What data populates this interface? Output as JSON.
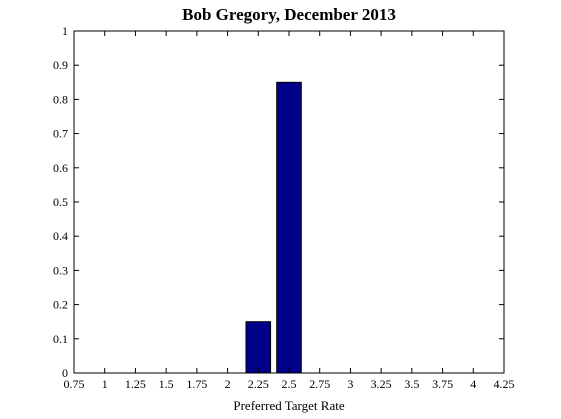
{
  "chart_data": {
    "type": "bar",
    "title": "Bob Gregory, December 2013",
    "xlabel": "Preferred Target Rate",
    "ylabel": "",
    "x": [
      2.25,
      2.5
    ],
    "values": [
      0.15,
      0.85
    ],
    "bar_width": 0.2,
    "xlim": [
      0.75,
      4.25
    ],
    "ylim": [
      0,
      1
    ],
    "xticks": [
      0.75,
      1,
      1.25,
      1.5,
      1.75,
      2,
      2.25,
      2.5,
      2.75,
      3,
      3.25,
      3.5,
      3.75,
      4,
      4.25
    ],
    "xtick_labels": [
      "0.75",
      "1",
      "1.25",
      "1.5",
      "1.75",
      "2",
      "2.25",
      "2.5",
      "2.75",
      "3",
      "3.25",
      "3.5",
      "3.75",
      "4",
      "4.25"
    ],
    "yticks": [
      0,
      0.1,
      0.2,
      0.3,
      0.4,
      0.5,
      0.6,
      0.7,
      0.8,
      0.9,
      1
    ],
    "ytick_labels": [
      "0",
      "0.1",
      "0.2",
      "0.3",
      "0.4",
      "0.5",
      "0.6",
      "0.7",
      "0.8",
      "0.9",
      "1"
    ],
    "grid": false,
    "legend": "none",
    "colors": {
      "bar_fill": "#00008b",
      "bar_edge": "#000000",
      "axis": "#000000",
      "background": "#ffffff"
    }
  }
}
